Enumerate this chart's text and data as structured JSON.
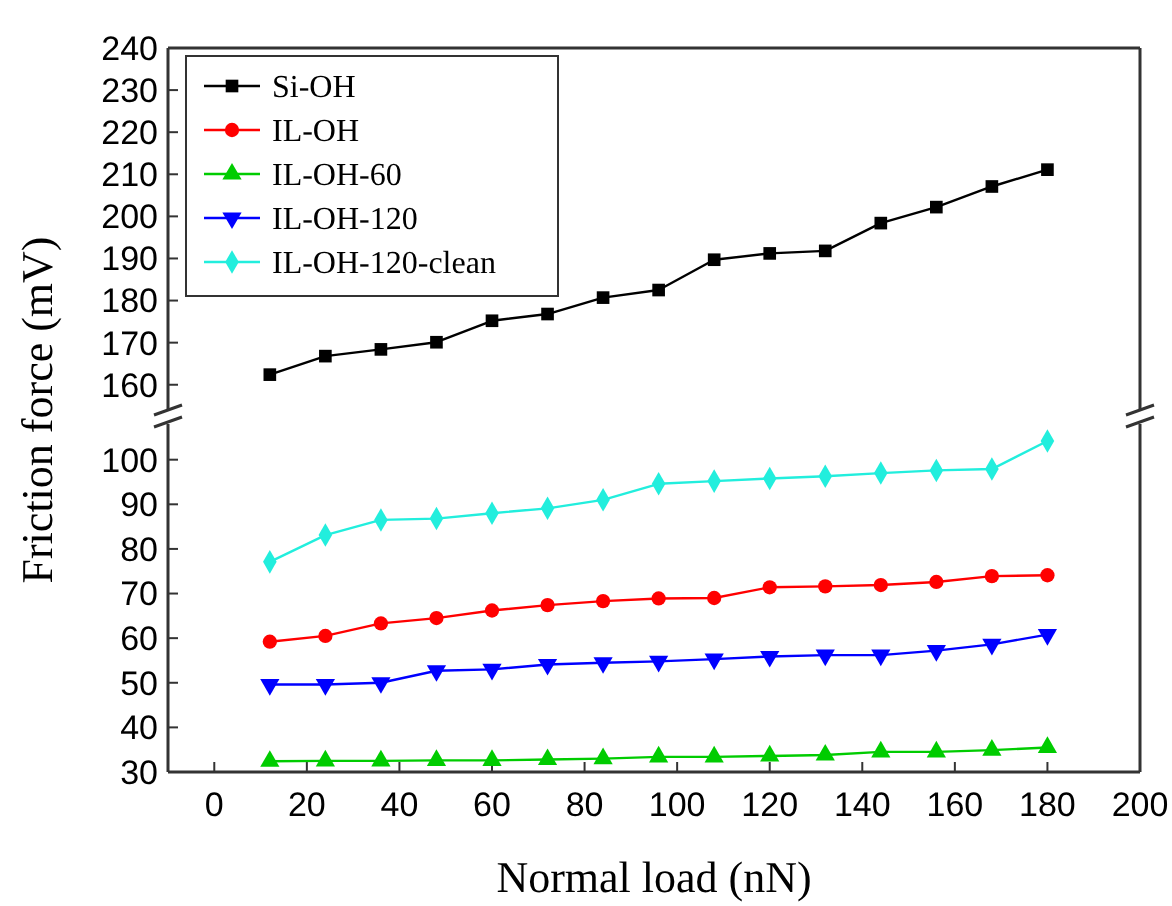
{
  "chart_data": [
    {
      "type": "line",
      "ylabel": "Friction force (mV)",
      "xlim": [
        -10,
        200
      ],
      "ylim": [
        154,
        240
      ],
      "yticks": [
        160,
        170,
        180,
        190,
        200,
        210,
        220,
        230,
        240
      ],
      "tick_labels": "y",
      "legend": "top left",
      "x": [
        12,
        24,
        36,
        48,
        60,
        72,
        84,
        96,
        108,
        120,
        132,
        144,
        156,
        168,
        180
      ],
      "series": [
        {
          "name": "Si-OH",
          "color": "#000000",
          "marker": "square",
          "values": [
            162.4,
            166.8,
            168.4,
            170.1,
            175.2,
            176.8,
            180.7,
            182.5,
            189.7,
            191.2,
            191.8,
            198.4,
            202.2,
            207.1,
            211.1
          ]
        },
        {
          "name": "IL-OH",
          "color": "#ff0000",
          "marker": "circle",
          "values": [
            null,
            null,
            null,
            null,
            null,
            null,
            null,
            null,
            null,
            null,
            null,
            null,
            null,
            null,
            null
          ]
        },
        {
          "name": "IL-OH-60",
          "color": "#00cc00",
          "marker": "triangle",
          "values": [
            null,
            null,
            null,
            null,
            null,
            null,
            null,
            null,
            null,
            null,
            null,
            null,
            null,
            null,
            null
          ]
        },
        {
          "name": "IL-OH-120",
          "color": "#0000ff",
          "marker": "triangle-down",
          "values": [
            null,
            null,
            null,
            null,
            null,
            null,
            null,
            null,
            null,
            null,
            null,
            null,
            null,
            null,
            null
          ]
        },
        {
          "name": "IL-OH-120-clean",
          "color": "#22eedd",
          "marker": "diamond",
          "values": [
            null,
            null,
            null,
            null,
            null,
            null,
            null,
            null,
            null,
            null,
            null,
            null,
            null,
            null,
            null
          ]
        }
      ]
    },
    {
      "type": "line",
      "xlabel": "Normal load (nN)",
      "xlim": [
        -10,
        200
      ],
      "xticks": [
        0,
        20,
        40,
        60,
        80,
        100,
        120,
        140,
        160,
        180,
        200
      ],
      "ylim": [
        30,
        108
      ],
      "yticks": [
        30,
        40,
        50,
        60,
        70,
        80,
        90,
        100
      ],
      "legend": false,
      "x": [
        12,
        24,
        36,
        48,
        60,
        72,
        84,
        96,
        108,
        120,
        132,
        144,
        156,
        168,
        180
      ],
      "series": [
        {
          "color": "#ff0000",
          "marker": "circle",
          "values": [
            59.2,
            60.5,
            63.3,
            64.5,
            66.2,
            67.4,
            68.3,
            68.9,
            69.0,
            71.4,
            71.6,
            71.9,
            72.6,
            73.9,
            74.1
          ]
        },
        {
          "color": "#00cc00",
          "marker": "triangle",
          "values": [
            32.4,
            32.5,
            32.5,
            32.6,
            32.6,
            32.8,
            33.0,
            33.4,
            33.4,
            33.6,
            33.8,
            34.5,
            34.5,
            34.9,
            35.5
          ]
        },
        {
          "color": "#0000ff",
          "marker": "triangle-down",
          "values": [
            49.6,
            49.6,
            50.0,
            52.7,
            53.0,
            54.1,
            54.5,
            54.8,
            55.3,
            55.9,
            56.2,
            56.2,
            57.2,
            58.6,
            60.8
          ]
        },
        {
          "color": "#22eedd",
          "marker": "diamond",
          "values": [
            77.1,
            83.1,
            86.5,
            86.8,
            88.0,
            89.1,
            91.0,
            94.6,
            95.2,
            95.8,
            96.3,
            97.0,
            97.6,
            97.9,
            104.2
          ]
        }
      ]
    }
  ]
}
